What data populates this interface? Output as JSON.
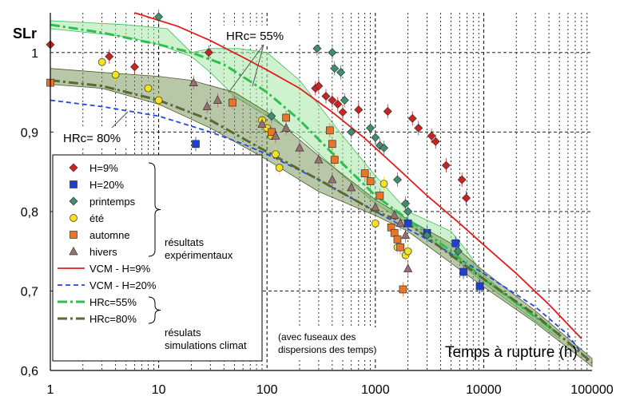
{
  "chart_data": {
    "type": "scatter",
    "x_scale": "log",
    "xlim": [
      1,
      100000
    ],
    "ylim": [
      0.6,
      1.05
    ],
    "grid": true,
    "legend_position": "left",
    "ylabel": "SLr",
    "xlabel": "Temps à rupture (h)",
    "x_ticks": [
      "1",
      "10",
      "100",
      "1000",
      "10000",
      "100000"
    ],
    "y_ticks": [
      "0,6",
      "0,7",
      "0,8",
      "0,9",
      "1"
    ],
    "annotations": {
      "hrc55": "HRc= 55%",
      "hrc80": "HRc= 80%",
      "bracket_exp_1": "résultats",
      "bracket_exp_2": "expérimentaux",
      "bracket_sim_1": "résulats",
      "bracket_sim_2": "simulations climat",
      "fuseaux_1": "(avec fuseaux des",
      "fuseaux_2": "dispersions des temps)"
    },
    "colors": {
      "h9": "#cc2222",
      "h20": "#1f3fd0",
      "printemps": "#3f8f6f",
      "ete": "#f5e21e",
      "automne": "#e8762a",
      "hivers": "#9a6f6f",
      "vcm9": "#e31b1b",
      "vcm20": "#2346e6",
      "hrc55": "#2fbf4f",
      "hrc80": "#5a6a32",
      "band55": "#a6e6a6",
      "band80": "#6f8f4f"
    },
    "series": [
      {
        "name": "H=9%",
        "kind": "points",
        "marker": "diamond",
        "color": "#cc2222",
        "x": [
          1,
          3.5,
          6,
          29,
          280,
          300,
          350,
          400,
          450,
          500,
          700,
          1300,
          2200,
          2500,
          3300,
          3600,
          4500,
          6300,
          6900
        ],
        "y": [
          1.01,
          0.995,
          0.982,
          1.0,
          0.955,
          0.958,
          0.945,
          0.94,
          0.935,
          0.925,
          0.928,
          0.926,
          0.917,
          0.905,
          0.895,
          0.888,
          0.858,
          0.84,
          0.817
        ]
      },
      {
        "name": "H=20%",
        "kind": "points",
        "marker": "square",
        "color": "#1f3fd0",
        "x": [
          22,
          23,
          48,
          2000,
          3000,
          5500,
          6500,
          9200
        ],
        "y": [
          0.885,
          0.83,
          0.803,
          0.785,
          0.773,
          0.76,
          0.724,
          0.706
        ]
      },
      {
        "name": "printemps",
        "kind": "points",
        "marker": "diamond",
        "color": "#3f8f6f",
        "x": [
          10,
          55,
          110,
          290,
          400,
          420,
          480,
          520,
          600,
          900,
          1000,
          1100,
          1200,
          1600,
          1900,
          2000,
          3000,
          5800
        ],
        "y": [
          1.045,
          1.025,
          0.92,
          1.005,
          1.0,
          0.98,
          0.975,
          0.94,
          0.9,
          0.905,
          0.893,
          0.883,
          0.88,
          0.84,
          0.81,
          0.8,
          0.77,
          0.75
        ]
      },
      {
        "name": "été",
        "kind": "points",
        "marker": "circle",
        "color": "#f5e21e",
        "x": [
          3,
          4,
          8,
          10,
          90,
          100,
          110,
          120,
          130,
          1000,
          1200,
          1600,
          1900,
          2000
        ],
        "y": [
          0.988,
          0.972,
          0.955,
          0.94,
          0.915,
          0.905,
          0.895,
          0.872,
          0.855,
          0.785,
          0.835,
          0.755,
          0.745,
          0.75
        ]
      },
      {
        "name": "automne",
        "kind": "points",
        "marker": "square",
        "color": "#e8762a",
        "x": [
          1,
          48,
          110,
          150,
          380,
          400,
          420,
          800,
          900,
          1100,
          1400,
          1500,
          1600,
          1700,
          1800
        ],
        "y": [
          0.962,
          0.937,
          0.9,
          0.918,
          0.902,
          0.885,
          0.865,
          0.848,
          0.838,
          0.82,
          0.78,
          0.773,
          0.765,
          0.755,
          0.702
        ]
      },
      {
        "name": "hivers",
        "kind": "points",
        "marker": "triangle",
        "color": "#9a6f6f",
        "x": [
          21,
          28,
          35,
          90,
          120,
          150,
          200,
          300,
          400,
          600,
          1000,
          1500,
          1700,
          1900,
          2000
        ],
        "y": [
          0.962,
          0.932,
          0.94,
          0.91,
          0.895,
          0.905,
          0.88,
          0.865,
          0.84,
          0.83,
          0.805,
          0.795,
          0.785,
          0.77,
          0.728
        ]
      },
      {
        "name": "VCM - H=9%",
        "kind": "line",
        "style": "solid",
        "color": "#e31b1b",
        "x": [
          6,
          15,
          30,
          60,
          100,
          200,
          400,
          800,
          1500,
          3000,
          6000,
          10000,
          20000,
          40000,
          80000
        ],
        "y": [
          1.05,
          1.033,
          1.015,
          0.994,
          0.978,
          0.955,
          0.925,
          0.892,
          0.858,
          0.82,
          0.785,
          0.758,
          0.722,
          0.683,
          0.64
        ]
      },
      {
        "name": "VCM - H=20%",
        "kind": "line",
        "style": "dash",
        "color": "#2346e6",
        "x": [
          1,
          3,
          10,
          30,
          60,
          100,
          300,
          1000,
          3000,
          10000,
          30000,
          60000,
          90000
        ],
        "y": [
          0.94,
          0.932,
          0.92,
          0.9,
          0.885,
          0.872,
          0.84,
          0.8,
          0.765,
          0.722,
          0.68,
          0.645,
          0.612
        ]
      },
      {
        "name": "HRc=55%",
        "kind": "line",
        "style": "dashdot",
        "color": "#2fbf4f",
        "x": [
          1,
          3,
          10,
          20,
          40,
          100,
          200,
          500,
          1000,
          2000,
          5000,
          10000,
          20000,
          50000
        ],
        "y": [
          1.035,
          1.025,
          1.01,
          1.0,
          0.985,
          0.95,
          0.915,
          0.86,
          0.82,
          0.79,
          0.75,
          0.715,
          0.685,
          0.645
        ]
      },
      {
        "name": "HRc=80%",
        "kind": "line",
        "style": "dashdot",
        "color": "#5a6a32",
        "x": [
          1,
          3,
          10,
          30,
          100,
          300,
          1000,
          2000,
          5000,
          10000,
          30000,
          100000
        ],
        "y": [
          0.965,
          0.958,
          0.94,
          0.915,
          0.875,
          0.84,
          0.8,
          0.785,
          0.745,
          0.715,
          0.67,
          0.61
        ]
      }
    ],
    "bands": [
      {
        "name": "HRc=55%",
        "color": "#a6e6a6",
        "upper": {
          "x": [
            1,
            5,
            12,
            20,
            30,
            55,
            100,
            200,
            500,
            1000,
            2000,
            5000,
            7000,
            10000,
            20000,
            50000
          ],
          "y": [
            1.04,
            1.035,
            1.03,
            1.0,
            1.005,
            1.005,
            1.0,
            0.965,
            0.895,
            0.845,
            0.8,
            0.775,
            0.75,
            0.72,
            0.685,
            0.645
          ]
        },
        "lower": {
          "x": [
            1,
            5,
            10,
            20,
            30,
            50,
            100,
            200,
            500,
            1000,
            2000,
            5000,
            10000,
            20000,
            50000
          ],
          "y": [
            1.03,
            1.02,
            1.01,
            0.995,
            0.975,
            0.945,
            0.92,
            0.895,
            0.845,
            0.81,
            0.785,
            0.745,
            0.71,
            0.68,
            0.64
          ]
        }
      },
      {
        "name": "HRc=80%",
        "color": "#6f8f4f",
        "upper": {
          "x": [
            1,
            3,
            10,
            20,
            50,
            100,
            300,
            1000,
            2000,
            5000,
            10000,
            30000,
            100000
          ],
          "y": [
            0.98,
            0.975,
            0.97,
            0.965,
            0.95,
            0.925,
            0.87,
            0.815,
            0.79,
            0.76,
            0.725,
            0.675,
            0.615
          ]
        },
        "lower": {
          "x": [
            1,
            3,
            10,
            30,
            100,
            300,
            1000,
            2000,
            5000,
            10000,
            30000,
            100000
          ],
          "y": [
            0.96,
            0.955,
            0.935,
            0.905,
            0.865,
            0.825,
            0.795,
            0.775,
            0.735,
            0.705,
            0.66,
            0.605
          ]
        }
      }
    ]
  }
}
